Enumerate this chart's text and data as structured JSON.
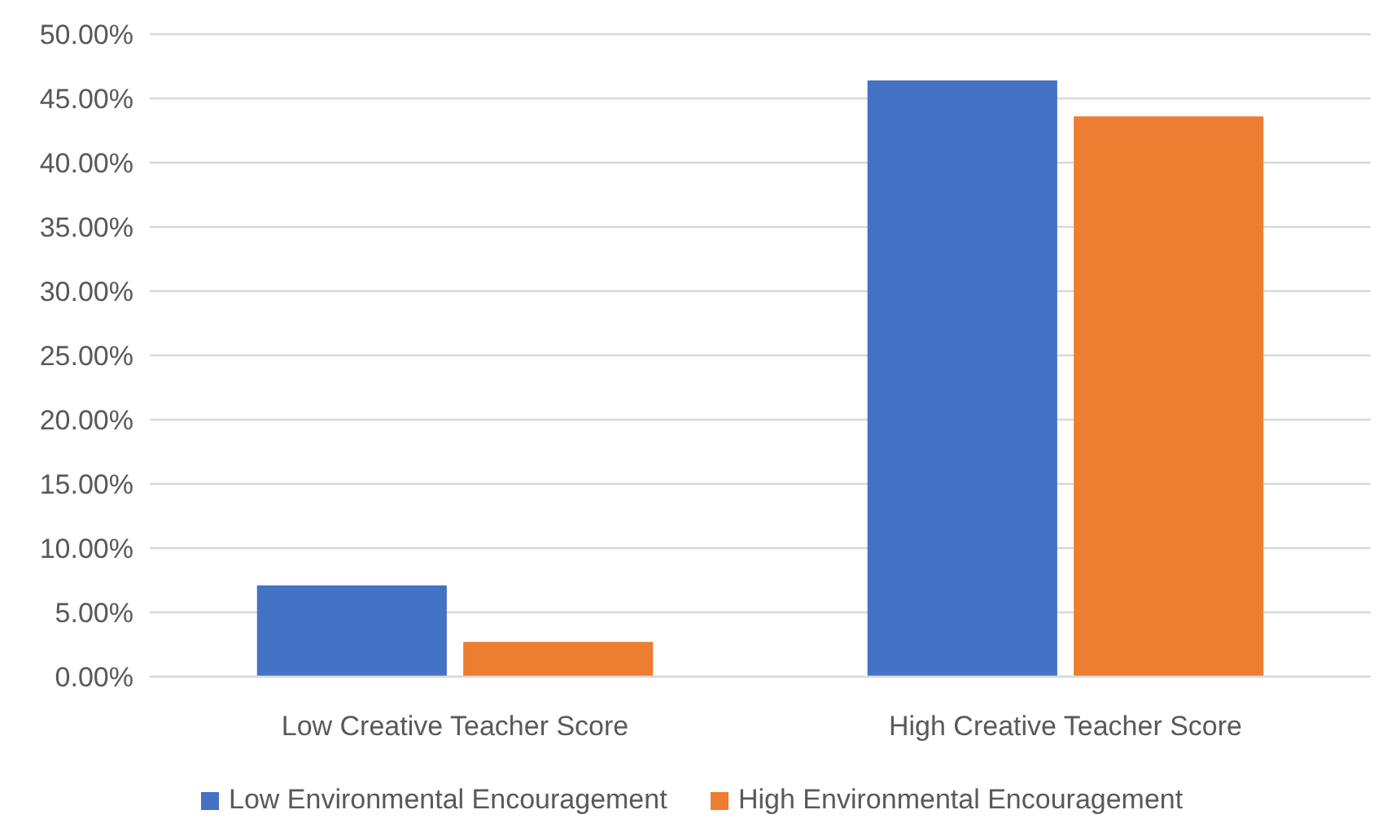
{
  "chart_data": {
    "type": "bar",
    "categories": [
      "Low Creative Teacher Score",
      "High Creative Teacher Score"
    ],
    "series": [
      {
        "name": "Low Environmental Encouragement",
        "color": "#4472c4",
        "values": [
          7.1,
          46.4
        ]
      },
      {
        "name": "High Environmental Encouragement",
        "color": "#ed7d31",
        "values": [
          2.7,
          43.6
        ]
      }
    ],
    "ylim": [
      0,
      50
    ],
    "yticks": [
      {
        "value": 0,
        "label": "0.00%"
      },
      {
        "value": 5,
        "label": "5.00%"
      },
      {
        "value": 10,
        "label": "10.00%"
      },
      {
        "value": 15,
        "label": "15.00%"
      },
      {
        "value": 20,
        "label": "20.00%"
      },
      {
        "value": 25,
        "label": "25.00%"
      },
      {
        "value": 30,
        "label": "30.00%"
      },
      {
        "value": 35,
        "label": "35.00%"
      },
      {
        "value": 40,
        "label": "40.00%"
      },
      {
        "value": 45,
        "label": "45.00%"
      },
      {
        "value": 50,
        "label": "50.00%"
      }
    ],
    "grid": "y",
    "legend": "bottom"
  }
}
